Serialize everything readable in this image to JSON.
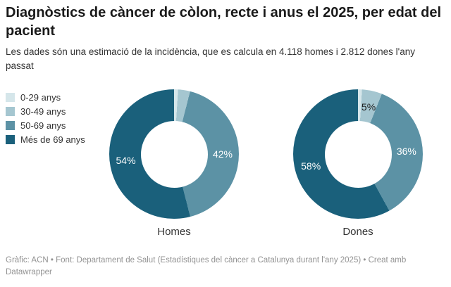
{
  "header": {
    "title": "Diagnòstics de càncer de còlon, recte i anus el 2025, per edat del pacient",
    "subtitle": "Les dades són una estimació de la incidència, que es calcula en 4.118 homes i 2.812 dones l'any passat"
  },
  "chart_data": {
    "type": "pie",
    "subtype": "donut",
    "unit": "%",
    "legend_position": "left",
    "groups": [
      {
        "label": "0-29 anys",
        "color": "#d5e6ea",
        "label_text_color": "#1d1d1d"
      },
      {
        "label": "30-49 anys",
        "color": "#a5c6d0",
        "label_text_color": "#1d1d1d"
      },
      {
        "label": "50-69 anys",
        "color": "#5c92a5",
        "label_text_color": "#ffffff"
      },
      {
        "label": "Més de 69 anys",
        "color": "#1a607b",
        "label_text_color": "#ffffff"
      }
    ],
    "charts": [
      {
        "title": "Homes",
        "values": [
          1,
          3,
          42,
          54
        ],
        "display_labels": [
          "",
          "",
          "42%",
          "54%"
        ]
      },
      {
        "title": "Dones",
        "values": [
          1,
          5,
          36,
          58
        ],
        "display_labels": [
          "",
          "5%",
          "36%",
          "58%"
        ]
      }
    ]
  },
  "footer": {
    "text": "Gràfic: ACN • Font: Departament de Salut (Estadístiques del càncer a Catalunya durant l'any 2025) • Creat amb Datawrapper"
  }
}
